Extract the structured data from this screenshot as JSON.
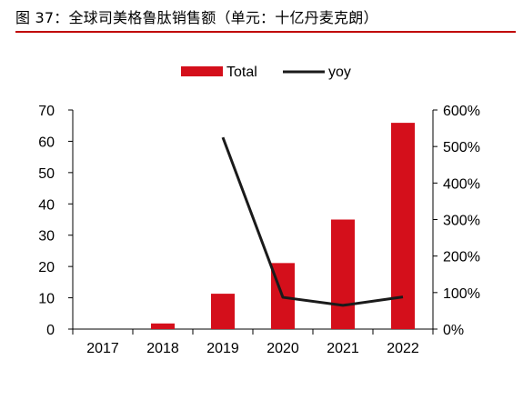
{
  "figure": {
    "title": "图 37：全球司美格鲁肽销售额（单元：十亿丹麦克朗）"
  },
  "colors": {
    "bar": "#d40f1b",
    "line": "#1a1a1a",
    "title_rule": "#c00000"
  },
  "chart_data": {
    "type": "bar",
    "categories": [
      "2017",
      "2018",
      "2019",
      "2020",
      "2021",
      "2022"
    ],
    "series": [
      {
        "name": "Total",
        "type": "bar",
        "axis": "left",
        "values": [
          0,
          1.8,
          11.3,
          21.1,
          35.0,
          65.9
        ]
      },
      {
        "name": "yoy",
        "type": "line",
        "axis": "right",
        "values": [
          null,
          null,
          5.25,
          0.87,
          0.65,
          0.88
        ]
      }
    ],
    "ylim": [
      0,
      70
    ],
    "yticks": [
      "0",
      "10",
      "20",
      "30",
      "40",
      "50",
      "60",
      "70"
    ],
    "y2lim": [
      0,
      6
    ],
    "y2ticks": [
      "0%",
      "100%",
      "200%",
      "300%",
      "400%",
      "500%",
      "600%"
    ],
    "legend": "top-center",
    "grid": false
  }
}
